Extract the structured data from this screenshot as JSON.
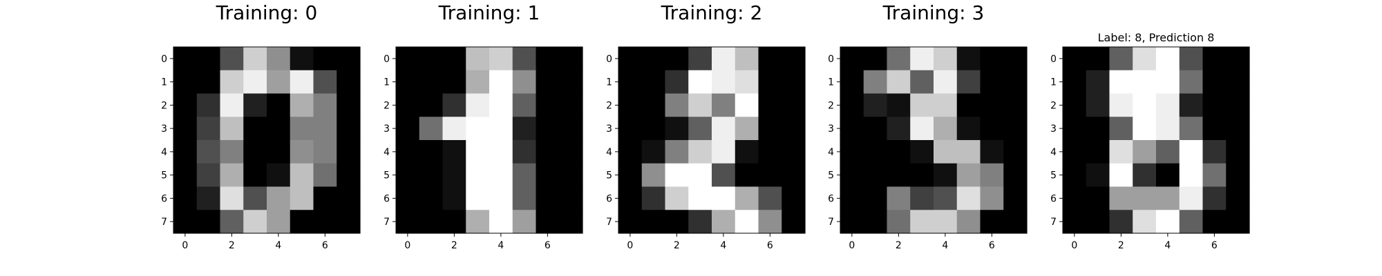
{
  "chart_data": [
    {
      "type": "heatmap",
      "title": "Training: 0",
      "colormap": "gray",
      "vmin": 0,
      "vmax": 16,
      "xticks": [
        "0",
        "2",
        "4",
        "6"
      ],
      "yticks": [
        "0",
        "1",
        "2",
        "3",
        "4",
        "5",
        "6",
        "7"
      ],
      "values": [
        [
          0,
          0,
          5,
          13,
          9,
          1,
          0,
          0
        ],
        [
          0,
          0,
          13,
          15,
          10,
          15,
          5,
          0
        ],
        [
          0,
          3,
          15,
          2,
          0,
          11,
          8,
          0
        ],
        [
          0,
          4,
          12,
          0,
          0,
          8,
          8,
          0
        ],
        [
          0,
          5,
          8,
          0,
          0,
          9,
          8,
          0
        ],
        [
          0,
          4,
          11,
          0,
          1,
          12,
          7,
          0
        ],
        [
          0,
          2,
          14,
          5,
          10,
          12,
          0,
          0
        ],
        [
          0,
          0,
          6,
          13,
          10,
          0,
          0,
          0
        ]
      ]
    },
    {
      "type": "heatmap",
      "title": "Training: 1",
      "colormap": "gray",
      "vmin": 0,
      "vmax": 16,
      "xticks": [
        "0",
        "2",
        "4",
        "6"
      ],
      "yticks": [
        "0",
        "1",
        "2",
        "3",
        "4",
        "5",
        "6",
        "7"
      ],
      "values": [
        [
          0,
          0,
          0,
          12,
          13,
          5,
          0,
          0
        ],
        [
          0,
          0,
          0,
          11,
          16,
          9,
          0,
          0
        ],
        [
          0,
          0,
          3,
          15,
          16,
          6,
          0,
          0
        ],
        [
          0,
          7,
          15,
          16,
          16,
          2,
          0,
          0
        ],
        [
          0,
          0,
          1,
          16,
          16,
          3,
          0,
          0
        ],
        [
          0,
          0,
          1,
          16,
          16,
          6,
          0,
          0
        ],
        [
          0,
          0,
          1,
          16,
          16,
          6,
          0,
          0
        ],
        [
          0,
          0,
          0,
          11,
          16,
          10,
          0,
          0
        ]
      ]
    },
    {
      "type": "heatmap",
      "title": "Training: 2",
      "colormap": "gray",
      "vmin": 0,
      "vmax": 16,
      "xticks": [
        "0",
        "2",
        "4",
        "6"
      ],
      "yticks": [
        "0",
        "1",
        "2",
        "3",
        "4",
        "5",
        "6",
        "7"
      ],
      "values": [
        [
          0,
          0,
          0,
          4,
          15,
          12,
          0,
          0
        ],
        [
          0,
          0,
          3,
          16,
          15,
          14,
          0,
          0
        ],
        [
          0,
          0,
          8,
          13,
          8,
          16,
          0,
          0
        ],
        [
          0,
          0,
          1,
          6,
          15,
          11,
          0,
          0
        ],
        [
          0,
          1,
          8,
          13,
          15,
          1,
          0,
          0
        ],
        [
          0,
          9,
          16,
          16,
          5,
          0,
          0,
          0
        ],
        [
          0,
          3,
          13,
          16,
          16,
          11,
          5,
          0
        ],
        [
          0,
          0,
          0,
          3,
          11,
          16,
          9,
          0
        ]
      ]
    },
    {
      "type": "heatmap",
      "title": "Training: 3",
      "colormap": "gray",
      "vmin": 0,
      "vmax": 16,
      "xticks": [
        "0",
        "2",
        "4",
        "6"
      ],
      "yticks": [
        "0",
        "1",
        "2",
        "3",
        "4",
        "5",
        "6",
        "7"
      ],
      "values": [
        [
          0,
          0,
          7,
          15,
          13,
          1,
          0,
          0
        ],
        [
          0,
          8,
          13,
          6,
          15,
          4,
          0,
          0
        ],
        [
          0,
          2,
          1,
          13,
          13,
          0,
          0,
          0
        ],
        [
          0,
          0,
          2,
          15,
          11,
          1,
          0,
          0
        ],
        [
          0,
          0,
          0,
          1,
          12,
          12,
          1,
          0
        ],
        [
          0,
          0,
          0,
          0,
          1,
          10,
          8,
          0
        ],
        [
          0,
          0,
          8,
          4,
          5,
          14,
          9,
          0
        ],
        [
          0,
          0,
          7,
          13,
          13,
          9,
          0,
          0
        ]
      ]
    },
    {
      "type": "heatmap",
      "title": "Label: 8, Prediction 8",
      "colormap": "gray",
      "vmin": 0,
      "vmax": 16,
      "xticks": [
        "0",
        "2",
        "4",
        "6"
      ],
      "yticks": [
        "0",
        "1",
        "2",
        "3",
        "4",
        "5",
        "6",
        "7"
      ],
      "values": [
        [
          0,
          0,
          6,
          14,
          16,
          5,
          0,
          0
        ],
        [
          0,
          2,
          16,
          16,
          16,
          7,
          0,
          0
        ],
        [
          0,
          2,
          15,
          16,
          15,
          2,
          0,
          0
        ],
        [
          0,
          0,
          6,
          16,
          15,
          7,
          0,
          0
        ],
        [
          0,
          0,
          14,
          10,
          6,
          16,
          3,
          0
        ],
        [
          0,
          1,
          16,
          3,
          0,
          16,
          7,
          0
        ],
        [
          0,
          0,
          10,
          10,
          10,
          15,
          3,
          0
        ],
        [
          0,
          0,
          3,
          14,
          16,
          6,
          0,
          0
        ]
      ]
    }
  ]
}
